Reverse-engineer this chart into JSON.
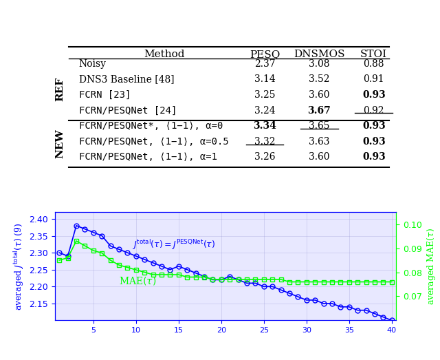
{
  "table": {
    "col_labels": [
      "Method",
      "PESQ",
      "DNSMOS",
      "STOI"
    ],
    "rows": [
      {
        "group": "REF",
        "label": "Noisy",
        "pesq": "2.37",
        "dnsmos": "3.08",
        "stoi": "0.88",
        "bold_pesq": false,
        "bold_dnsmos": false,
        "bold_stoi": false,
        "ul_pesq": false,
        "ul_dnsmos": false,
        "ul_stoi": false,
        "monospace": false
      },
      {
        "group": "REF",
        "label": "DNS3 Baseline [48]",
        "pesq": "3.14",
        "dnsmos": "3.52",
        "stoi": "0.91",
        "bold_pesq": false,
        "bold_dnsmos": false,
        "bold_stoi": false,
        "ul_pesq": false,
        "ul_dnsmos": false,
        "ul_stoi": false,
        "monospace": false
      },
      {
        "group": "REF",
        "label": "FCRN [23]",
        "pesq": "3.25",
        "dnsmos": "3.60",
        "stoi": "0.93",
        "bold_pesq": false,
        "bold_dnsmos": false,
        "bold_stoi": true,
        "ul_pesq": false,
        "ul_dnsmos": false,
        "ul_stoi": false,
        "monospace": true
      },
      {
        "group": "REF",
        "label": "FCRN/PESQNet [24]",
        "pesq": "3.24",
        "dnsmos": "3.67",
        "stoi": "0.92",
        "bold_pesq": false,
        "bold_dnsmos": true,
        "bold_stoi": false,
        "ul_pesq": false,
        "ul_dnsmos": false,
        "ul_stoi": true,
        "monospace": true
      },
      {
        "group": "NEW",
        "label": "FCRN/PESQNet*, ⟨1−1⟩, α=0",
        "pesq": "3.34",
        "dnsmos": "3.65",
        "stoi": "0.93",
        "bold_pesq": true,
        "bold_dnsmos": false,
        "bold_stoi": true,
        "ul_pesq": false,
        "ul_dnsmos": true,
        "ul_stoi": false,
        "monospace": true
      },
      {
        "group": "NEW",
        "label": "FCRN/PESQNet, ⟨1−1⟩, α=0.5",
        "pesq": "3.32",
        "dnsmos": "3.63",
        "stoi": "0.93",
        "bold_pesq": false,
        "bold_dnsmos": false,
        "bold_stoi": true,
        "ul_pesq": true,
        "ul_dnsmos": false,
        "ul_stoi": false,
        "monospace": true
      },
      {
        "group": "NEW",
        "label": "FCRN/PESQNet, ⟨1−1⟩, α=1",
        "pesq": "3.26",
        "dnsmos": "3.60",
        "stoi": "0.93",
        "bold_pesq": false,
        "bold_dnsmos": false,
        "bold_stoi": true,
        "ul_pesq": false,
        "ul_dnsmos": false,
        "ul_stoi": false,
        "monospace": true
      }
    ]
  },
  "blue_x": [
    1,
    2,
    3,
    4,
    5,
    6,
    7,
    8,
    9,
    10,
    11,
    12,
    13,
    14,
    15,
    16,
    17,
    18,
    19,
    20,
    21,
    22,
    23,
    24,
    25,
    26,
    27,
    28,
    29,
    30,
    31,
    32,
    33,
    34,
    35,
    36,
    37,
    38,
    39,
    40
  ],
  "blue_y": [
    2.3,
    2.29,
    2.38,
    2.37,
    2.36,
    2.35,
    2.32,
    2.31,
    2.3,
    2.29,
    2.28,
    2.27,
    2.26,
    2.25,
    2.26,
    2.25,
    2.24,
    2.23,
    2.22,
    2.22,
    2.23,
    2.22,
    2.21,
    2.21,
    2.2,
    2.2,
    2.19,
    2.18,
    2.17,
    2.16,
    2.16,
    2.15,
    2.15,
    2.14,
    2.14,
    2.13,
    2.13,
    2.12,
    2.11,
    2.1
  ],
  "green_x": [
    1,
    2,
    3,
    4,
    5,
    6,
    7,
    8,
    9,
    10,
    11,
    12,
    13,
    14,
    15,
    16,
    17,
    18,
    19,
    20,
    21,
    22,
    23,
    24,
    25,
    26,
    27,
    28,
    29,
    30,
    31,
    32,
    33,
    34,
    35,
    36,
    37,
    38,
    39,
    40
  ],
  "green_y": [
    0.085,
    0.086,
    0.093,
    0.091,
    0.089,
    0.088,
    0.085,
    0.083,
    0.082,
    0.081,
    0.08,
    0.079,
    0.079,
    0.079,
    0.079,
    0.078,
    0.078,
    0.078,
    0.077,
    0.077,
    0.077,
    0.077,
    0.077,
    0.077,
    0.077,
    0.077,
    0.077,
    0.076,
    0.076,
    0.076,
    0.076,
    0.076,
    0.076,
    0.076,
    0.076,
    0.076,
    0.076,
    0.076,
    0.076,
    0.076
  ],
  "blue_color": "#0000ff",
  "green_color": "#00ff00",
  "ylim_blue": [
    2.1,
    2.42
  ],
  "ylim_green": [
    0.06,
    0.105
  ],
  "yticks_blue": [
    2.15,
    2.2,
    2.25,
    2.3,
    2.35,
    2.4
  ],
  "yticks_green": [
    0.07,
    0.08,
    0.09,
    0.1
  ],
  "ylabel_left": "averaged $J^{\\mathrm{total}}(\\tau)$ (9)",
  "ylabel_right": "averaged MAE$(\\tau)$",
  "annotation_blue": "$J^{\\mathrm{total}}(\\tau) = J^{\\mathrm{PESQNet}}(\\tau)$",
  "annotation_green": "MAE$(\\tau)$",
  "bg_color": "#e8e8ff"
}
